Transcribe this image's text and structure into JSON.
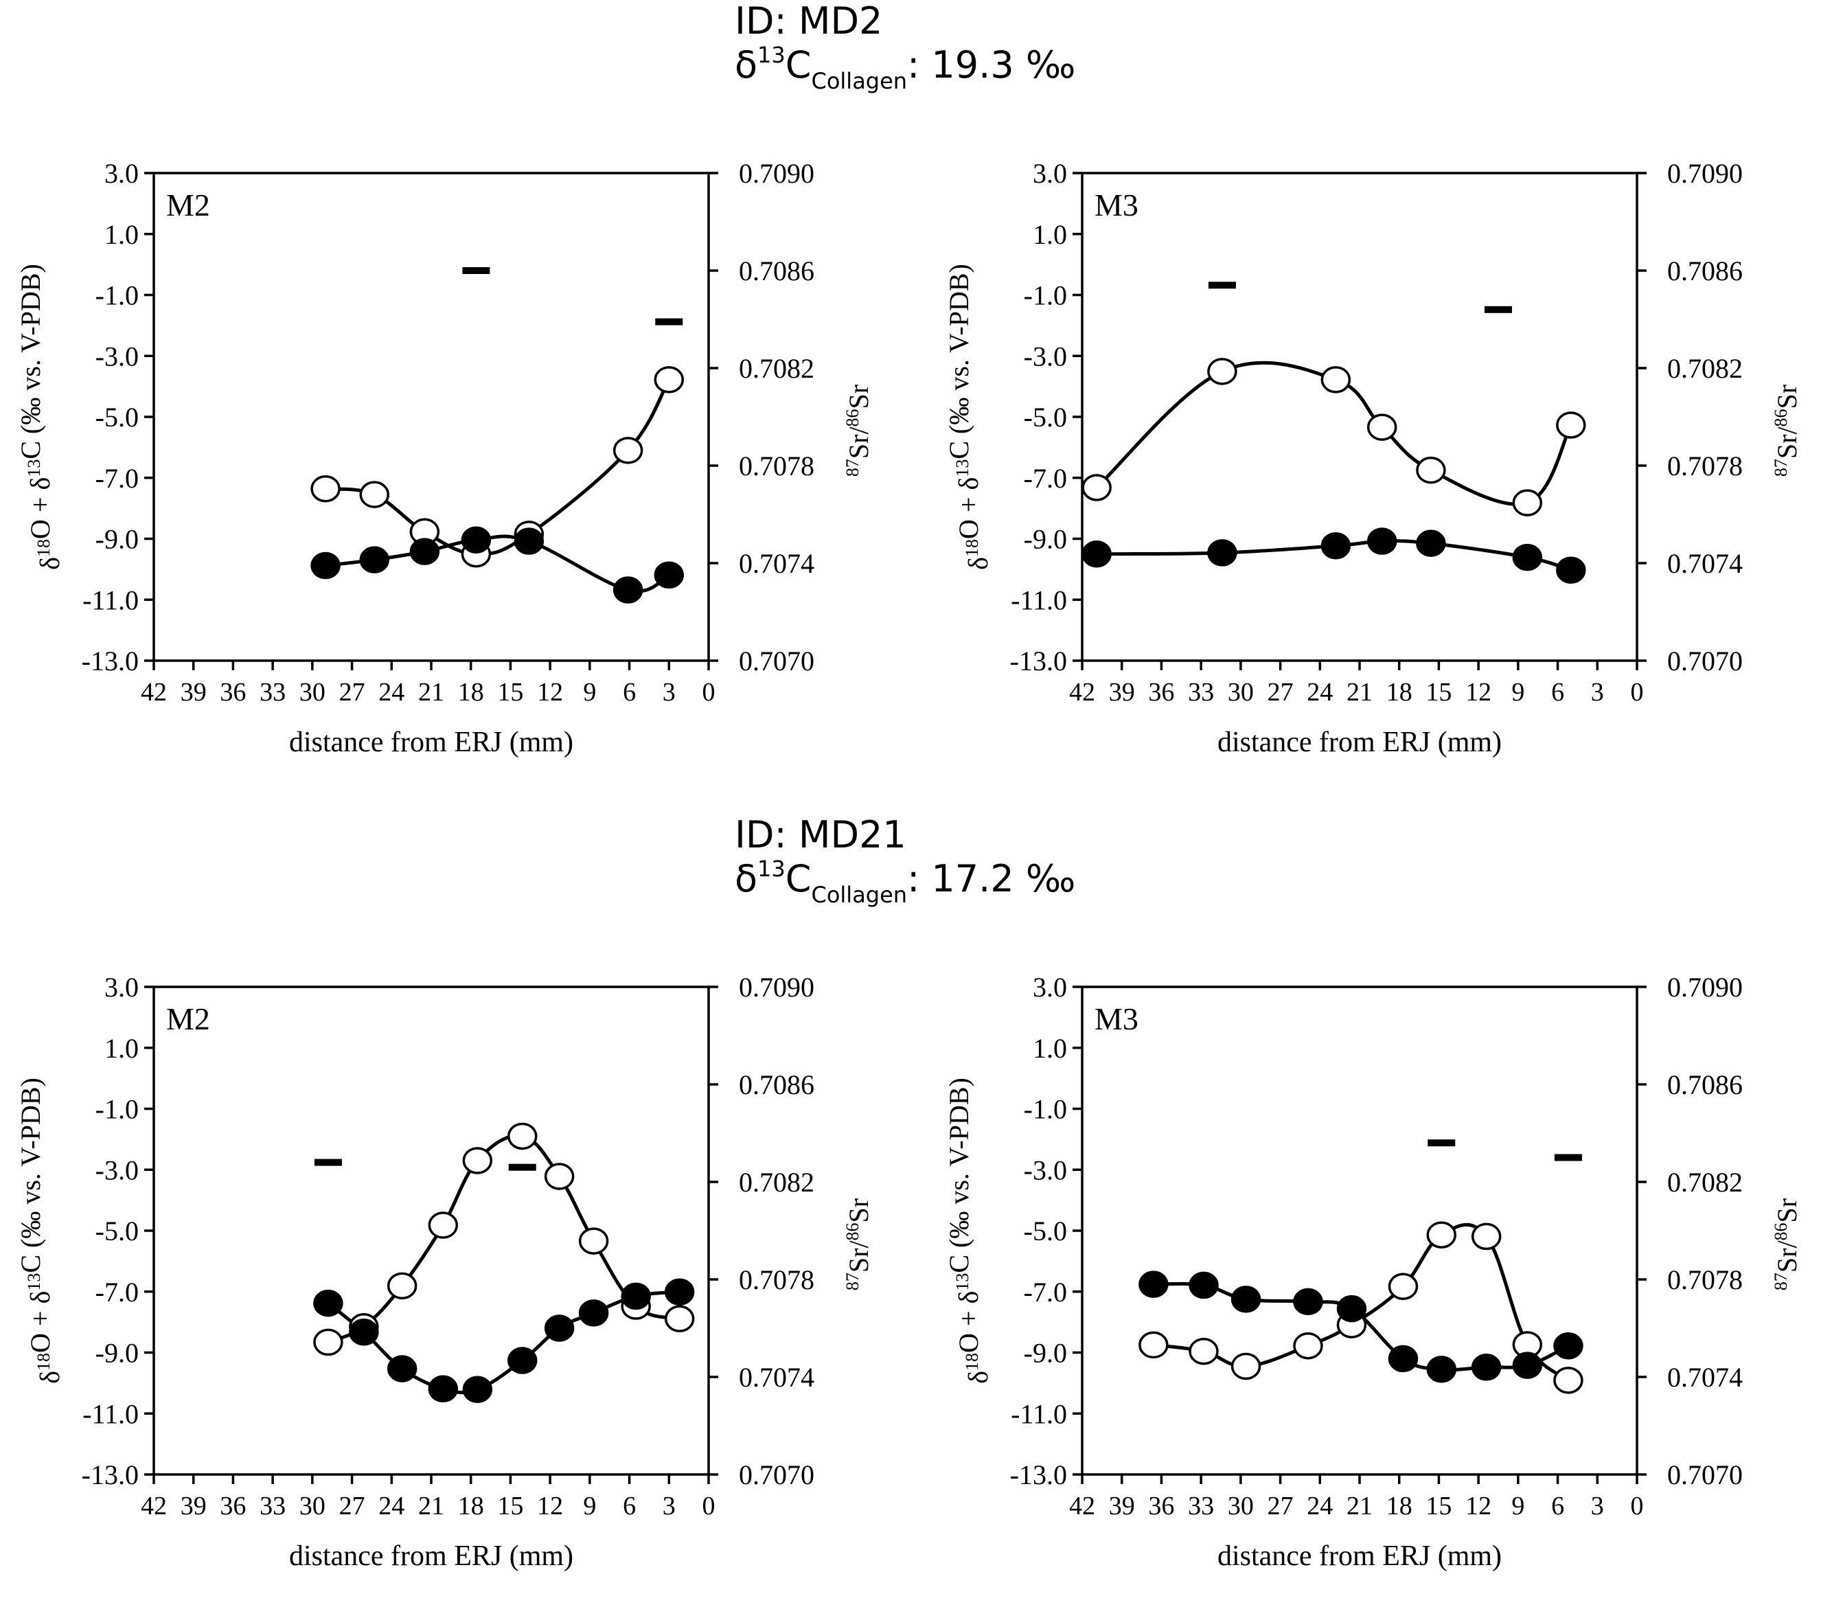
{
  "groups": [
    {
      "id_label": "ID: MD2",
      "collagen": {
        "delta": "δ",
        "iso": "13",
        "element": "C",
        "sub": "Collagen",
        "value": ": 19.3 ‰"
      }
    },
    {
      "id_label": "ID: MD21",
      "collagen": {
        "delta": "δ",
        "iso": "13",
        "element": "C",
        "sub": "Collagen",
        "value": ": 17.2 ‰"
      }
    }
  ],
  "axes": {
    "left_label": "δ18O + δ13C (‰ vs. V-PDB)",
    "left_label_parts": {
      "d1": "δ",
      "i1": "18",
      "e1": "O + ",
      "d2": "δ",
      "i2": "13",
      "e2": "C (‰ vs. V-PDB)"
    },
    "right_label_parts": {
      "i1": "87",
      "e1": "Sr/",
      "i2": "86",
      "e2": "Sr"
    },
    "xlabel": "distance from ERJ (mm)",
    "left_ticks": [
      "3.0",
      "1.0",
      "-1.0",
      "-3.0",
      "-5.0",
      "-7.0",
      "-9.0",
      "-11.0",
      "-13.0"
    ],
    "right_ticks": [
      "0.7090",
      "0.7086",
      "0.7082",
      "0.7078",
      "0.7074",
      "0.7070"
    ],
    "x_ticks": [
      "42",
      "39",
      "36",
      "33",
      "30",
      "27",
      "24",
      "21",
      "18",
      "15",
      "12",
      "9",
      "6",
      "3",
      "0"
    ]
  },
  "chart_data": [
    {
      "type": "line",
      "group": "ID: MD2",
      "panel_label": "M2",
      "xlabel": "distance from ERJ (mm)",
      "ylabel": "δ18O + δ13C (‰ vs. V-PDB)",
      "y2label": "87Sr/86Sr",
      "xlim": [
        42,
        0
      ],
      "ylim": [
        -13.0,
        3.0
      ],
      "y2lim": [
        0.707,
        0.709
      ],
      "series": [
        {
          "name": "δ18O (open circles)",
          "marker": "open",
          "x": [
            29.0,
            25.3,
            21.5,
            17.6,
            13.6,
            6.1,
            3.0
          ],
          "y": [
            -7.36,
            -7.55,
            -8.77,
            -9.5,
            -8.85,
            -6.1,
            -3.78
          ]
        },
        {
          "name": "δ13C (filled circles)",
          "marker": "filled",
          "x": [
            29.0,
            25.3,
            21.5,
            17.6,
            13.6,
            6.1,
            3.0
          ],
          "y": [
            -9.88,
            -9.69,
            -9.42,
            -9.04,
            -9.08,
            -10.68,
            -10.19
          ]
        },
        {
          "name": "87Sr/86Sr (bars)",
          "marker": "bar",
          "axis": "right",
          "x": [
            17.6,
            3.0
          ],
          "y": [
            0.7086,
            0.70839
          ]
        }
      ]
    },
    {
      "type": "line",
      "group": "ID: MD2",
      "panel_label": "M3",
      "xlabel": "distance from ERJ (mm)",
      "ylabel": "δ18O + δ13C (‰ vs. V-PDB)",
      "y2label": "87Sr/86Sr",
      "xlim": [
        42,
        0
      ],
      "ylim": [
        -13.0,
        3.0
      ],
      "y2lim": [
        0.707,
        0.709
      ],
      "series": [
        {
          "name": "δ18O (open circles)",
          "marker": "open",
          "x": [
            40.9,
            31.4,
            22.8,
            19.3,
            15.6,
            8.3,
            5.0
          ],
          "y": [
            -7.32,
            -3.51,
            -3.78,
            -5.34,
            -6.75,
            -7.82,
            -5.27
          ]
        },
        {
          "name": "δ13C (filled circles)",
          "marker": "filled",
          "x": [
            40.9,
            31.4,
            22.8,
            19.3,
            15.6,
            8.3,
            5.0
          ],
          "y": [
            -9.5,
            -9.46,
            -9.23,
            -9.08,
            -9.15,
            -9.61,
            -10.03
          ]
        },
        {
          "name": "87Sr/86Sr (bars)",
          "marker": "bar",
          "axis": "right",
          "x": [
            31.4,
            10.5
          ],
          "y": [
            0.70854,
            0.70844
          ]
        }
      ]
    },
    {
      "type": "line",
      "group": "ID: MD21",
      "panel_label": "M2",
      "xlabel": "distance from ERJ (mm)",
      "ylabel": "δ18O + δ13C (‰ vs. V-PDB)",
      "y2label": "87Sr/86Sr",
      "xlim": [
        42,
        0
      ],
      "ylim": [
        -13.0,
        3.0
      ],
      "y2lim": [
        0.707,
        0.709
      ],
      "series": [
        {
          "name": "δ18O (open circles)",
          "marker": "open",
          "x": [
            28.8,
            26.1,
            23.2,
            20.1,
            17.5,
            14.1,
            11.3,
            8.7,
            5.5,
            2.2
          ],
          "y": [
            -8.66,
            -8.15,
            -6.81,
            -4.82,
            -2.7,
            -1.9,
            -3.22,
            -5.34,
            -7.48,
            -7.89
          ]
        },
        {
          "name": "δ13C (filled circles)",
          "marker": "filled",
          "x": [
            28.8,
            26.1,
            23.2,
            20.1,
            17.5,
            14.1,
            11.3,
            8.7,
            5.5,
            2.2
          ],
          "y": [
            -7.38,
            -8.33,
            -9.53,
            -10.19,
            -10.21,
            -9.26,
            -8.2,
            -7.7,
            -7.15,
            -7.01
          ]
        },
        {
          "name": "87Sr/86Sr (bars)",
          "marker": "bar",
          "axis": "right",
          "x": [
            28.8,
            14.1
          ],
          "y": [
            0.70828,
            0.70826
          ]
        }
      ]
    },
    {
      "type": "line",
      "group": "ID: MD21",
      "panel_label": "M3",
      "xlabel": "distance from ERJ (mm)",
      "ylabel": "δ18O + δ13C (‰ vs. V-PDB)",
      "y2label": "87Sr/86Sr",
      "xlim": [
        42,
        0
      ],
      "ylim": [
        -13.0,
        3.0
      ],
      "y2lim": [
        0.707,
        0.709
      ],
      "series": [
        {
          "name": "δ18O (open circles)",
          "marker": "open",
          "x": [
            36.6,
            32.8,
            29.6,
            24.9,
            21.6,
            17.7,
            14.8,
            11.4,
            8.3,
            5.2
          ],
          "y": [
            -8.75,
            -8.96,
            -9.45,
            -8.78,
            -8.09,
            -6.83,
            -5.14,
            -5.19,
            -8.74,
            -9.91
          ]
        },
        {
          "name": "δ13C (filled circles)",
          "marker": "filled",
          "x": [
            36.6,
            32.8,
            29.6,
            24.9,
            21.6,
            17.7,
            14.8,
            11.4,
            8.3,
            5.2
          ],
          "y": [
            -6.76,
            -6.79,
            -7.25,
            -7.33,
            -7.56,
            -9.2,
            -9.55,
            -9.48,
            -9.42,
            -8.78
          ]
        },
        {
          "name": "87Sr/86Sr (bars)",
          "marker": "bar",
          "axis": "right",
          "x": [
            14.8,
            5.2
          ],
          "y": [
            0.70836,
            0.7083
          ]
        }
      ]
    }
  ]
}
